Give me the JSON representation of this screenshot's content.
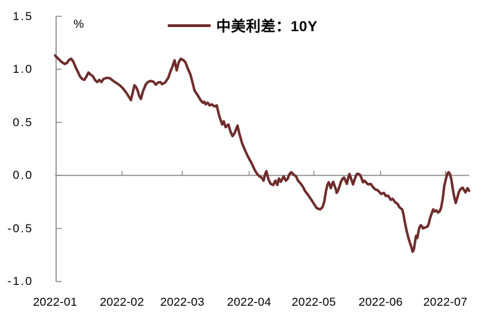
{
  "colors": {
    "series_line": "#6e2c2c",
    "axis_gray": "#8a8a8a",
    "text": "#000000",
    "background": "#ffffff"
  },
  "chart_data": {
    "type": "line",
    "title": "",
    "xlabel": "",
    "ylabel": "%",
    "ylim": [
      -1.0,
      1.5
    ],
    "grid": {
      "zero_line": true,
      "other_gridlines": false
    },
    "legend_position": "top-center",
    "x_axis": {
      "unit": "days since 2022-01-01",
      "range": [
        0,
        192
      ]
    },
    "yticks": [
      {
        "value": 1.5,
        "label": "1.5"
      },
      {
        "value": 1.0,
        "label": "1.0"
      },
      {
        "value": 0.5,
        "label": "0.5"
      },
      {
        "value": 0.0,
        "label": "0.0"
      },
      {
        "value": -0.5,
        "label": "-0.5"
      },
      {
        "value": -1.0,
        "label": "-1.0"
      }
    ],
    "xticks": [
      {
        "day": 0,
        "label": "2022-01"
      },
      {
        "day": 31,
        "label": "2022-02"
      },
      {
        "day": 59,
        "label": "2022-03"
      },
      {
        "day": 90,
        "label": "2022-04"
      },
      {
        "day": 120,
        "label": "2022-05"
      },
      {
        "day": 151,
        "label": "2022-06"
      },
      {
        "day": 181,
        "label": "2022-07"
      }
    ],
    "series": [
      {
        "name": "中美利差：10Y",
        "color": "#6e2c2c",
        "points": [
          [
            0,
            1.13
          ],
          [
            1,
            1.11
          ],
          [
            2,
            1.09
          ],
          [
            3,
            1.07
          ],
          [
            4.5,
            1.05
          ],
          [
            5.5,
            1.06
          ],
          [
            6.5,
            1.09
          ],
          [
            7.5,
            1.1
          ],
          [
            8.5,
            1.07
          ],
          [
            9.5,
            1.02
          ],
          [
            10.5,
            0.98
          ],
          [
            11.5,
            0.935
          ],
          [
            12.5,
            0.91
          ],
          [
            13.5,
            0.9
          ],
          [
            14.5,
            0.93
          ],
          [
            15.5,
            0.97
          ],
          [
            16.5,
            0.95
          ],
          [
            17.5,
            0.935
          ],
          [
            18.5,
            0.9
          ],
          [
            19.5,
            0.88
          ],
          [
            20.5,
            0.9
          ],
          [
            21.5,
            0.88
          ],
          [
            22.5,
            0.91
          ],
          [
            24,
            0.92
          ],
          [
            25.5,
            0.915
          ],
          [
            27,
            0.89
          ],
          [
            28.5,
            0.87
          ],
          [
            30,
            0.85
          ],
          [
            31.5,
            0.82
          ],
          [
            33,
            0.78
          ],
          [
            34.3,
            0.74
          ],
          [
            35.2,
            0.71
          ],
          [
            36,
            0.78
          ],
          [
            36.8,
            0.85
          ],
          [
            37.5,
            0.835
          ],
          [
            38.3,
            0.8
          ],
          [
            39,
            0.75
          ],
          [
            39.8,
            0.72
          ],
          [
            40.7,
            0.79
          ],
          [
            42,
            0.855
          ],
          [
            43,
            0.88
          ],
          [
            44.2,
            0.89
          ],
          [
            45.5,
            0.885
          ],
          [
            46.8,
            0.855
          ],
          [
            47.7,
            0.875
          ],
          [
            48.8,
            0.88
          ],
          [
            49.6,
            0.86
          ],
          [
            51,
            0.875
          ],
          [
            52.5,
            0.92
          ],
          [
            53.5,
            0.98
          ],
          [
            54.5,
            1.03
          ],
          [
            55.4,
            1.085
          ],
          [
            56.4,
            0.99
          ],
          [
            57.3,
            1.065
          ],
          [
            58.3,
            1.1
          ],
          [
            59.6,
            1.085
          ],
          [
            60.5,
            1.065
          ],
          [
            61.5,
            1.01
          ],
          [
            62.8,
            0.95
          ],
          [
            63.7,
            0.88
          ],
          [
            64.7,
            0.8
          ],
          [
            66,
            0.76
          ],
          [
            67.6,
            0.705
          ],
          [
            68.5,
            0.685
          ],
          [
            69.2,
            0.695
          ],
          [
            69.8,
            0.67
          ],
          [
            70.8,
            0.685
          ],
          [
            71.7,
            0.66
          ],
          [
            72.7,
            0.67
          ],
          [
            74,
            0.65
          ],
          [
            75,
            0.66
          ],
          [
            76,
            0.57
          ],
          [
            76.8,
            0.52
          ],
          [
            77.5,
            0.48
          ],
          [
            78.2,
            0.51
          ],
          [
            79.1,
            0.455
          ],
          [
            80.4,
            0.48
          ],
          [
            81.4,
            0.41
          ],
          [
            82.3,
            0.37
          ],
          [
            83.3,
            0.4
          ],
          [
            84.6,
            0.47
          ],
          [
            85.5,
            0.39
          ],
          [
            86.8,
            0.3
          ],
          [
            88,
            0.24
          ],
          [
            89.4,
            0.18
          ],
          [
            91,
            0.12
          ],
          [
            92.6,
            0.05
          ],
          [
            93.5,
            0.02
          ],
          [
            94.8,
            -0.01
          ],
          [
            95.8,
            -0.02
          ],
          [
            96.7,
            -0.05
          ],
          [
            97.4,
            0.01
          ],
          [
            98,
            0.04
          ],
          [
            99,
            -0.04
          ],
          [
            100,
            -0.08
          ],
          [
            101.2,
            -0.09
          ],
          [
            102.2,
            -0.05
          ],
          [
            103.1,
            -0.09
          ],
          [
            103.8,
            -0.03
          ],
          [
            104.7,
            -0.06
          ],
          [
            106,
            -0.01
          ],
          [
            107,
            -0.05
          ],
          [
            107.9,
            -0.03
          ],
          [
            108.6,
            0.01
          ],
          [
            109.5,
            0.03
          ],
          [
            110.8,
            0.005
          ],
          [
            111.8,
            -0.01
          ],
          [
            112.7,
            -0.05
          ],
          [
            114,
            -0.08
          ],
          [
            115,
            -0.11
          ],
          [
            116,
            -0.15
          ],
          [
            117.2,
            -0.18
          ],
          [
            118.2,
            -0.21
          ],
          [
            119.2,
            -0.24
          ],
          [
            120.4,
            -0.28
          ],
          [
            121.4,
            -0.31
          ],
          [
            123,
            -0.32
          ],
          [
            124,
            -0.3
          ],
          [
            124.8,
            -0.25
          ],
          [
            125.6,
            -0.15
          ],
          [
            126.3,
            -0.09
          ],
          [
            126.9,
            -0.065
          ],
          [
            127.4,
            -0.09
          ],
          [
            127.9,
            -0.12
          ],
          [
            128.5,
            -0.08
          ],
          [
            129,
            -0.06
          ],
          [
            129.5,
            -0.09
          ],
          [
            130.2,
            -0.13
          ],
          [
            130.6,
            -0.165
          ],
          [
            131.2,
            -0.145
          ],
          [
            131.8,
            -0.11
          ],
          [
            132.5,
            -0.065
          ],
          [
            133.3,
            -0.033
          ],
          [
            134,
            -0.02
          ],
          [
            134.6,
            -0.046
          ],
          [
            135.3,
            -0.08
          ],
          [
            136,
            -0.02
          ],
          [
            136.5,
            0.013
          ],
          [
            137,
            -0.013
          ],
          [
            137.6,
            -0.05
          ],
          [
            138.2,
            -0.085
          ],
          [
            139,
            -0.033
          ],
          [
            139.9,
            0.013
          ],
          [
            140.6,
            0.015
          ],
          [
            141.4,
            0.005
          ],
          [
            142,
            -0.02
          ],
          [
            142.8,
            -0.065
          ],
          [
            143.5,
            -0.05
          ],
          [
            144.4,
            -0.07
          ],
          [
            145.2,
            -0.085
          ],
          [
            146.4,
            -0.08
          ],
          [
            147.4,
            -0.11
          ],
          [
            148.4,
            -0.13
          ],
          [
            149.6,
            -0.14
          ],
          [
            150.3,
            -0.155
          ],
          [
            151.2,
            -0.175
          ],
          [
            152.5,
            -0.165
          ],
          [
            153.4,
            -0.195
          ],
          [
            154.4,
            -0.19
          ],
          [
            155.7,
            -0.23
          ],
          [
            156.6,
            -0.22
          ],
          [
            157.6,
            -0.25
          ],
          [
            158.9,
            -0.27
          ],
          [
            159.5,
            -0.295
          ],
          [
            160.2,
            -0.31
          ],
          [
            161,
            -0.32
          ],
          [
            161.6,
            -0.37
          ],
          [
            162.2,
            -0.44
          ],
          [
            163,
            -0.52
          ],
          [
            164,
            -0.6
          ],
          [
            165.3,
            -0.68
          ],
          [
            165.8,
            -0.72
          ],
          [
            166.4,
            -0.7
          ],
          [
            167,
            -0.62
          ],
          [
            167.4,
            -0.57
          ],
          [
            168,
            -0.59
          ],
          [
            168.6,
            -0.52
          ],
          [
            169,
            -0.49
          ],
          [
            169.6,
            -0.47
          ],
          [
            170.2,
            -0.48
          ],
          [
            170.6,
            -0.5
          ],
          [
            171.8,
            -0.49
          ],
          [
            172.8,
            -0.48
          ],
          [
            173.4,
            -0.45
          ],
          [
            173.8,
            -0.41
          ],
          [
            175,
            -0.34
          ],
          [
            175.4,
            -0.32
          ],
          [
            176,
            -0.34
          ],
          [
            176.9,
            -0.33
          ],
          [
            177.6,
            -0.35
          ],
          [
            178.3,
            -0.34
          ],
          [
            179,
            -0.31
          ],
          [
            179.8,
            -0.22
          ],
          [
            180.5,
            -0.1
          ],
          [
            181.3,
            -0.03
          ],
          [
            182,
            0.02
          ],
          [
            182.6,
            0.03
          ],
          [
            183.2,
            0.01
          ],
          [
            183.8,
            -0.04
          ],
          [
            184.4,
            -0.12
          ],
          [
            185,
            -0.19
          ],
          [
            185.8,
            -0.26
          ],
          [
            186.4,
            -0.22
          ],
          [
            187.2,
            -0.16
          ],
          [
            188,
            -0.13
          ],
          [
            189,
            -0.115
          ],
          [
            190.3,
            -0.16
          ],
          [
            191.3,
            -0.12
          ],
          [
            192,
            -0.145
          ]
        ]
      }
    ]
  }
}
